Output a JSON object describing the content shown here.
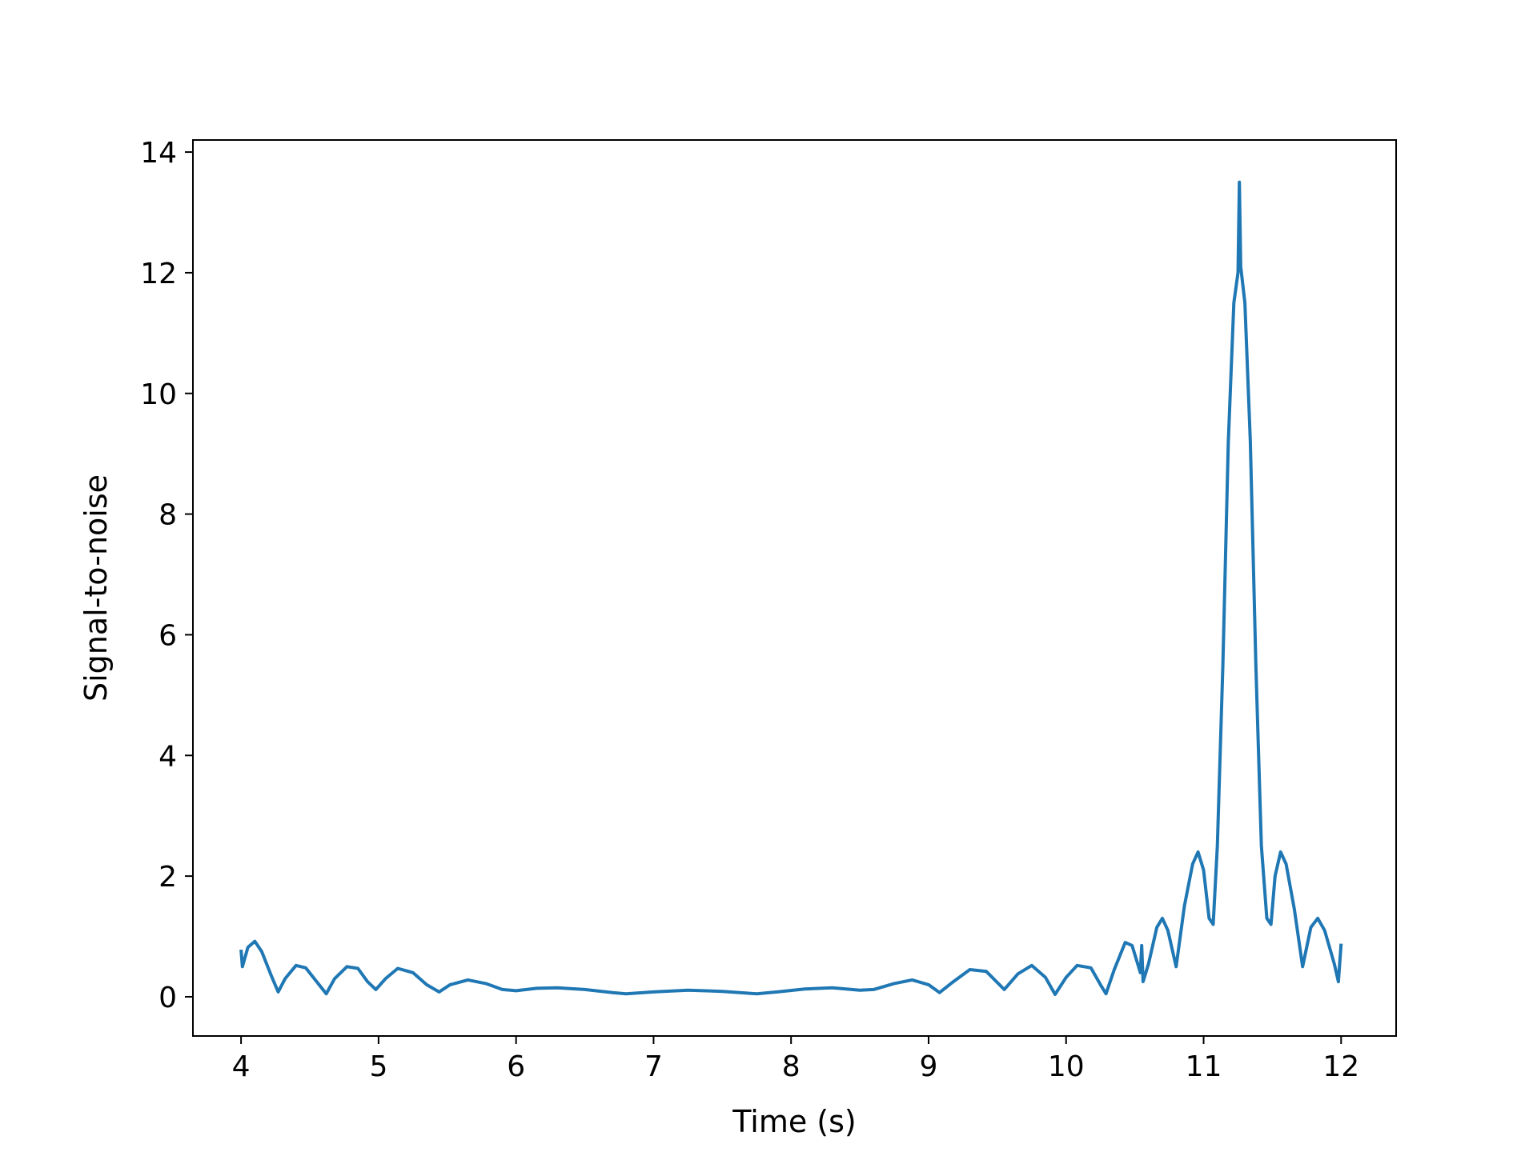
{
  "chart_data": {
    "type": "line",
    "title": "",
    "xlabel": "Time (s)",
    "ylabel": "Signal-to-noise",
    "xlim": [
      3.65,
      12.4
    ],
    "ylim": [
      -0.65,
      14.2
    ],
    "xticks": [
      4,
      5,
      6,
      7,
      8,
      9,
      10,
      11,
      12
    ],
    "yticks": [
      0,
      2,
      4,
      6,
      8,
      10,
      12,
      14
    ],
    "grid": false,
    "legend": "none",
    "series_color": "#1f77b4",
    "series": [
      {
        "points": [
          [
            4.0,
            0.78
          ],
          [
            4.01,
            0.5
          ],
          [
            4.05,
            0.82
          ],
          [
            4.1,
            0.92
          ],
          [
            4.15,
            0.75
          ],
          [
            4.22,
            0.35
          ],
          [
            4.27,
            0.08
          ],
          [
            4.32,
            0.3
          ],
          [
            4.4,
            0.52
          ],
          [
            4.47,
            0.48
          ],
          [
            4.55,
            0.25
          ],
          [
            4.62,
            0.05
          ],
          [
            4.68,
            0.3
          ],
          [
            4.77,
            0.5
          ],
          [
            4.85,
            0.47
          ],
          [
            4.92,
            0.25
          ],
          [
            4.98,
            0.12
          ],
          [
            5.05,
            0.3
          ],
          [
            5.14,
            0.47
          ],
          [
            5.25,
            0.4
          ],
          [
            5.35,
            0.2
          ],
          [
            5.44,
            0.08
          ],
          [
            5.52,
            0.2
          ],
          [
            5.65,
            0.28
          ],
          [
            5.78,
            0.22
          ],
          [
            5.9,
            0.12
          ],
          [
            6.0,
            0.1
          ],
          [
            6.15,
            0.14
          ],
          [
            6.3,
            0.15
          ],
          [
            6.5,
            0.12
          ],
          [
            6.7,
            0.07
          ],
          [
            6.8,
            0.05
          ],
          [
            7.0,
            0.08
          ],
          [
            7.25,
            0.11
          ],
          [
            7.5,
            0.09
          ],
          [
            7.75,
            0.05
          ],
          [
            7.9,
            0.08
          ],
          [
            8.1,
            0.13
          ],
          [
            8.3,
            0.15
          ],
          [
            8.5,
            0.11
          ],
          [
            8.6,
            0.12
          ],
          [
            8.75,
            0.22
          ],
          [
            8.88,
            0.28
          ],
          [
            9.0,
            0.2
          ],
          [
            9.08,
            0.07
          ],
          [
            9.18,
            0.25
          ],
          [
            9.3,
            0.45
          ],
          [
            9.42,
            0.42
          ],
          [
            9.55,
            0.12
          ],
          [
            9.65,
            0.38
          ],
          [
            9.75,
            0.52
          ],
          [
            9.85,
            0.32
          ],
          [
            9.92,
            0.04
          ],
          [
            10.0,
            0.32
          ],
          [
            10.08,
            0.52
          ],
          [
            10.18,
            0.48
          ],
          [
            10.25,
            0.2
          ],
          [
            10.29,
            0.05
          ],
          [
            10.35,
            0.45
          ],
          [
            10.43,
            0.9
          ],
          [
            10.48,
            0.85
          ],
          [
            10.52,
            0.55
          ],
          [
            10.54,
            0.4
          ],
          [
            10.55,
            0.85
          ],
          [
            10.56,
            0.25
          ],
          [
            10.6,
            0.55
          ],
          [
            10.66,
            1.15
          ],
          [
            10.7,
            1.3
          ],
          [
            10.74,
            1.1
          ],
          [
            10.8,
            0.5
          ],
          [
            10.86,
            1.5
          ],
          [
            10.92,
            2.2
          ],
          [
            10.96,
            2.4
          ],
          [
            11.0,
            2.1
          ],
          [
            11.04,
            1.3
          ],
          [
            11.07,
            1.2
          ],
          [
            11.1,
            2.5
          ],
          [
            11.14,
            5.5
          ],
          [
            11.18,
            9.2
          ],
          [
            11.22,
            11.5
          ],
          [
            11.25,
            12.0
          ],
          [
            11.26,
            13.5
          ],
          [
            11.27,
            12.1
          ],
          [
            11.3,
            11.5
          ],
          [
            11.34,
            9.2
          ],
          [
            11.38,
            5.5
          ],
          [
            11.42,
            2.5
          ],
          [
            11.46,
            1.3
          ],
          [
            11.49,
            1.2
          ],
          [
            11.52,
            2.0
          ],
          [
            11.56,
            2.4
          ],
          [
            11.6,
            2.2
          ],
          [
            11.66,
            1.45
          ],
          [
            11.72,
            0.5
          ],
          [
            11.78,
            1.15
          ],
          [
            11.83,
            1.3
          ],
          [
            11.88,
            1.1
          ],
          [
            11.95,
            0.55
          ],
          [
            11.98,
            0.25
          ],
          [
            12.0,
            0.88
          ]
        ]
      }
    ]
  }
}
